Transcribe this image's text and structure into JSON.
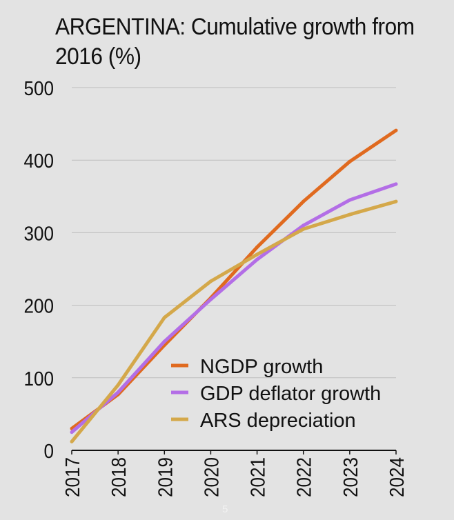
{
  "chart_data": {
    "type": "line",
    "title": "ARGENTINA: Cumulative growth from 2016 (%)",
    "title_lines": [
      "ARGENTINA: Cumulative growth from",
      "2016 (%)"
    ],
    "xlabel": "",
    "ylabel": "",
    "categories": [
      "2017",
      "2018",
      "2019",
      "2020",
      "2021",
      "2022",
      "2023",
      "2024"
    ],
    "ylim": [
      0,
      500
    ],
    "yticks": [
      "0",
      "100",
      "200",
      "300",
      "400",
      "500"
    ],
    "grid": true,
    "legend_position": "bottom-right",
    "series": [
      {
        "name": "NGDP growth",
        "color": "#e06a1f",
        "values": [
          30,
          77,
          145,
          210,
          280,
          343,
          398,
          441
        ]
      },
      {
        "name": "GDP deflator growth",
        "color": "#b36ee6",
        "values": [
          25,
          80,
          150,
          208,
          263,
          310,
          345,
          367
        ]
      },
      {
        "name": "ARS depreciation",
        "color": "#d4a84a",
        "values": [
          12,
          90,
          183,
          233,
          270,
          305,
          325,
          343
        ]
      }
    ]
  },
  "footer": {
    "page_number": "5"
  },
  "colors": {
    "background": "#e3e3e3",
    "grid": "#bdbdbd",
    "axis": "#111111",
    "text": "#111111"
  }
}
